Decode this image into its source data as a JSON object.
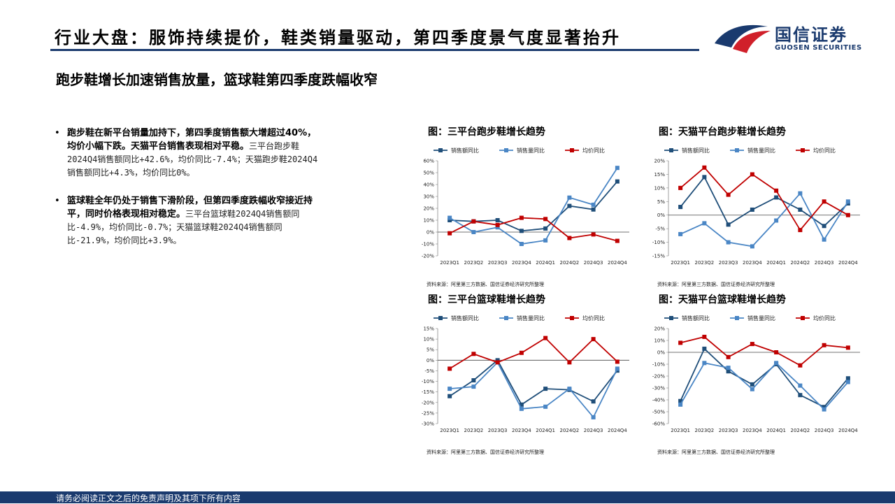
{
  "header": {
    "title": "行业大盘：服饰持续提价，鞋类销量驱动，第四季度景气度显著抬升",
    "subtitle": "跑步鞋增长加速销售放量，篮球鞋第四季度跌幅收窄"
  },
  "logo": {
    "name": "国信证券",
    "sub": "GUOSEN SECURITIES"
  },
  "bullets": [
    {
      "marker": "•",
      "strong": "跑步鞋在新平台销量加持下，第四季度销售额大增超过40%，均价小幅下跌。天猫平台销售表现相对平稳。",
      "normal": "三平台跑步鞋2024Q4销售额同比+42.6%，均价同比-7.4%；天猫跑步鞋2024Q4销售额同比+4.3%，均价同比0%。"
    },
    {
      "marker": "•",
      "strong": "篮球鞋全年仍处于销售下滑阶段，但第四季度跌幅收窄接近持平，同时价格表现相对稳定。",
      "normal": "三平台篮球鞋2024Q4销售额同比-4.9%，均价同比-0.7%；天猫篮球鞋2024Q4销售额同比-21.9%，均价同比+3.9%。"
    }
  ],
  "source_note": "资料来源：阿里第三方数据、国信证券经济研究所整理",
  "footer": "请务必阅读正文之后的免责声明及其项下所有内容",
  "colors": {
    "navy": "#1f4e79",
    "light_blue": "#4a86c5",
    "red": "#c00000"
  },
  "chart_data": [
    {
      "type": "line",
      "title": "图：三平台跑步鞋增长趋势",
      "categories": [
        "2023Q1",
        "2023Q2",
        "2023Q3",
        "2023Q4",
        "2024Q1",
        "2024Q2",
        "2024Q3",
        "2024Q4"
      ],
      "ylim": [
        -20,
        60
      ],
      "ystep": 10,
      "series": [
        {
          "name": "销售额同比",
          "color": "#1f4e79",
          "values": [
            10,
            9,
            10,
            1,
            3,
            22,
            19,
            42.6
          ]
        },
        {
          "name": "销售量同比",
          "color": "#4a86c5",
          "values": [
            12,
            0,
            4,
            -10,
            -7,
            29,
            23,
            54
          ]
        },
        {
          "name": "均价同比",
          "color": "#c00000",
          "values": [
            -1,
            9,
            6,
            12,
            11,
            -5,
            -2,
            -7.4
          ]
        }
      ]
    },
    {
      "type": "line",
      "title": "图：天猫平台跑步鞋增长趋势",
      "categories": [
        "2023Q1",
        "2023Q2",
        "2023Q3",
        "2023Q4",
        "2024Q1",
        "2024Q2",
        "2024Q3",
        "2024Q4"
      ],
      "ylim": [
        -15,
        20
      ],
      "ystep": 5,
      "series": [
        {
          "name": "销售额同比",
          "color": "#1f4e79",
          "values": [
            3,
            14,
            -3.5,
            2,
            6.5,
            2,
            -4,
            4.3
          ]
        },
        {
          "name": "销售量同比",
          "color": "#4a86c5",
          "values": [
            -7,
            -3,
            -10,
            -11.5,
            -2,
            8,
            -9,
            5
          ]
        },
        {
          "name": "均价同比",
          "color": "#c00000",
          "values": [
            10,
            17.5,
            7.5,
            15,
            9,
            -5.5,
            5,
            0
          ]
        }
      ]
    },
    {
      "type": "line",
      "title": "图：三平台篮球鞋增长趋势",
      "categories": [
        "2023Q1",
        "2023Q2",
        "2023Q3",
        "2023Q4",
        "2024Q1",
        "2024Q2",
        "2024Q3",
        "2024Q4"
      ],
      "ylim": [
        -30,
        15
      ],
      "ystep": 5,
      "series": [
        {
          "name": "销售额同比",
          "color": "#1f4e79",
          "values": [
            -17,
            -9.5,
            0,
            -21,
            -13.5,
            -14,
            -19.5,
            -4.9
          ]
        },
        {
          "name": "销售量同比",
          "color": "#4a86c5",
          "values": [
            -13.5,
            -12.5,
            -1,
            -23,
            -22,
            -13.5,
            -27,
            -4
          ]
        },
        {
          "name": "均价同比",
          "color": "#c00000",
          "values": [
            -4,
            3,
            -1,
            3.5,
            10.5,
            -1,
            10,
            -0.7
          ]
        }
      ]
    },
    {
      "type": "line",
      "title": "图：天猫平台篮球鞋增长趋势",
      "categories": [
        "2023Q1",
        "2023Q2",
        "2023Q3",
        "2023Q4",
        "2024Q1",
        "2024Q2",
        "2024Q3",
        "2024Q4"
      ],
      "ylim": [
        -60,
        20
      ],
      "ystep": 10,
      "series": [
        {
          "name": "销售额同比",
          "color": "#1f4e79",
          "values": [
            -41,
            3,
            -16,
            -27,
            -10,
            -36,
            -46,
            -21.9
          ]
        },
        {
          "name": "销售量同比",
          "color": "#4a86c5",
          "values": [
            -44,
            -9,
            -13,
            -31,
            -9,
            -28,
            -48,
            -25
          ]
        },
        {
          "name": "均价同比",
          "color": "#c00000",
          "values": [
            8,
            13,
            -4,
            7,
            0,
            -11,
            6,
            3.9
          ]
        }
      ]
    }
  ]
}
